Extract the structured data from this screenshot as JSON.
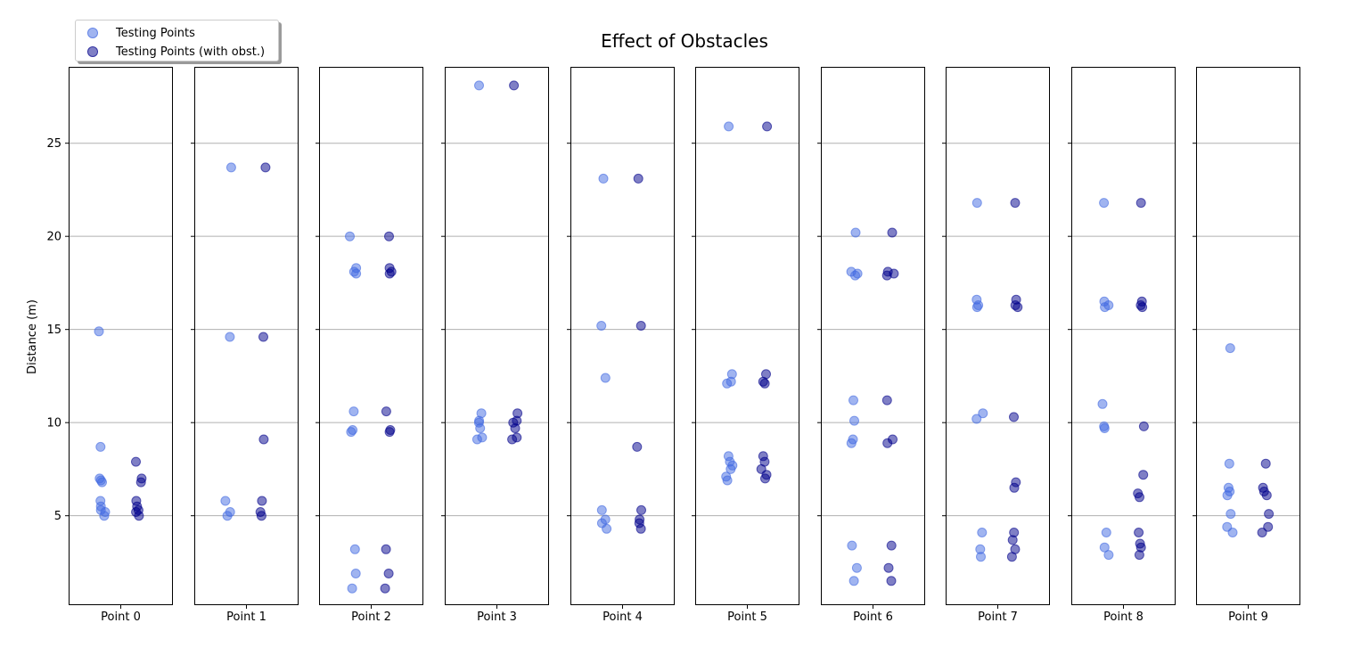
{
  "chart_data": {
    "type": "scatter",
    "title": "Effect of Obstacles",
    "ylabel": "Distance (m)",
    "ylim": [
      0.2,
      29.1
    ],
    "yticks": [
      5,
      10,
      15,
      20,
      25
    ],
    "grid": "horizontal",
    "legend_position": "top-left",
    "categories": [
      "Point 0",
      "Point 1",
      "Point 2",
      "Point 3",
      "Point 4",
      "Point 5",
      "Point 6",
      "Point 7",
      "Point 8",
      "Point 9"
    ],
    "series": [
      {
        "name": "Testing Points",
        "color": "#4169e1",
        "opacity": 0.5,
        "values": [
          [
            14.9,
            8.7,
            7.0,
            6.9,
            6.8,
            5.8,
            5.5,
            5.3,
            5.2,
            5.0
          ],
          [
            23.7,
            14.6,
            5.8,
            5.2,
            5.0
          ],
          [
            20.0,
            18.3,
            18.1,
            18.0,
            10.6,
            9.6,
            9.5,
            3.2,
            1.9,
            1.1
          ],
          [
            28.1,
            10.5,
            10.1,
            10.0,
            9.7,
            9.2,
            9.1
          ],
          [
            23.1,
            15.2,
            12.4,
            5.3,
            4.8,
            4.6,
            4.3
          ],
          [
            25.9,
            12.6,
            12.2,
            12.1,
            8.2,
            7.9,
            7.7,
            7.5,
            7.1,
            6.9
          ],
          [
            20.2,
            18.1,
            18.0,
            17.9,
            11.2,
            10.1,
            9.1,
            8.9,
            3.4,
            2.2,
            1.5
          ],
          [
            21.8,
            16.6,
            16.3,
            16.2,
            10.5,
            10.2,
            4.1,
            3.2,
            2.8
          ],
          [
            21.8,
            16.5,
            16.3,
            16.2,
            11.0,
            9.8,
            9.7,
            4.1,
            3.3,
            2.9
          ],
          [
            14.0,
            7.8,
            6.5,
            6.3,
            6.1,
            5.1,
            4.4,
            4.1
          ]
        ]
      },
      {
        "name": "Testing Points (with obst.)",
        "color": "#00008b",
        "opacity": 0.5,
        "values": [
          [
            7.9,
            7.0,
            6.8,
            5.8,
            5.5,
            5.3,
            5.2,
            5.0
          ],
          [
            23.7,
            14.6,
            9.1,
            5.8,
            5.2,
            5.0
          ],
          [
            20.0,
            18.3,
            18.1,
            18.0,
            10.6,
            9.6,
            9.5,
            3.2,
            1.9,
            1.1
          ],
          [
            28.1,
            10.5,
            10.1,
            10.0,
            9.7,
            9.2,
            9.1
          ],
          [
            23.1,
            15.2,
            8.7,
            5.3,
            4.8,
            4.6,
            4.3
          ],
          [
            25.9,
            12.6,
            12.2,
            12.1,
            8.2,
            7.9,
            7.5,
            7.2,
            7.0
          ],
          [
            20.2,
            18.1,
            18.0,
            17.9,
            11.2,
            9.1,
            8.9,
            3.4,
            2.2,
            1.5
          ],
          [
            21.8,
            16.6,
            16.3,
            16.2,
            10.3,
            6.8,
            6.5,
            4.1,
            3.7,
            3.2,
            2.8
          ],
          [
            21.8,
            16.5,
            16.3,
            16.2,
            9.8,
            7.2,
            6.2,
            6.0,
            4.1,
            3.5,
            3.3,
            2.9
          ],
          [
            7.8,
            6.5,
            6.3,
            6.1,
            5.1,
            4.4,
            4.1
          ]
        ]
      }
    ]
  }
}
